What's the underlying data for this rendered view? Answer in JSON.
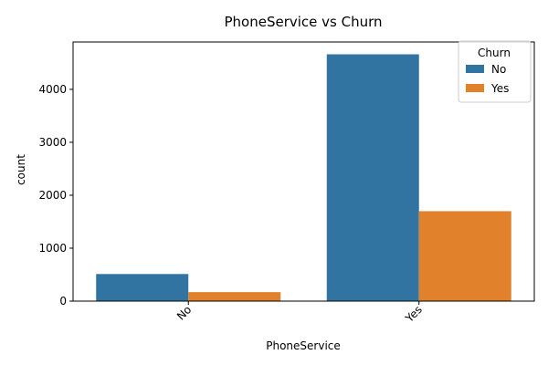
{
  "chart_data": {
    "type": "bar",
    "title": "PhoneService vs Churn",
    "xlabel": "PhoneService",
    "ylabel": "count",
    "categories": [
      "No",
      "Yes"
    ],
    "series": [
      {
        "name": "No",
        "values": [
          512,
          4662
        ],
        "color": "#3274a1"
      },
      {
        "name": "Yes",
        "values": [
          170,
          1699
        ],
        "color": "#e1812c"
      }
    ],
    "ylim": [
      0,
      4895
    ],
    "yticks": [
      0,
      1000,
      2000,
      3000,
      4000
    ],
    "legend": {
      "title": "Churn",
      "placement": "top-right"
    },
    "grid": false
  }
}
